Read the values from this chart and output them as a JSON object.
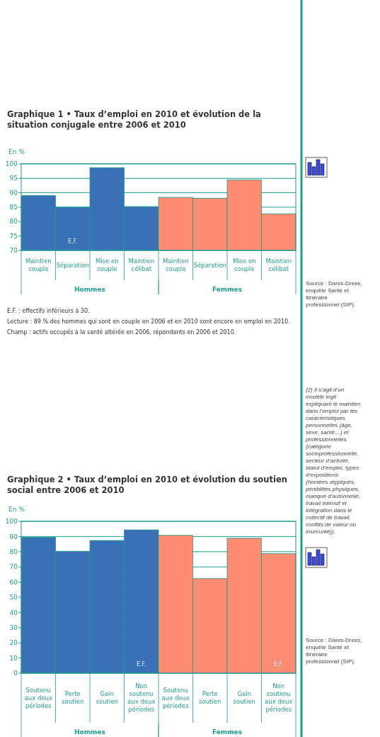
{
  "chart_data": [
    {
      "type": "bar",
      "title": "Graphique 1 • Taux d’emploi en 2010 et évolution de la situation conjugale entre 2006 et 2010",
      "ylabel": "En %",
      "categories": [
        "Maintien couple",
        "Séparation",
        "Mise en couple",
        "Maintien célibat",
        "Maintien couple",
        "Séparation",
        "Mise en couple",
        "Maintien célibat"
      ],
      "series": [
        {
          "name": "Hommes",
          "color": "#3a70b5",
          "values": [
            89.0,
            85.0,
            98.7,
            85.2,
            null,
            null,
            null,
            null
          ],
          "value_labels": [
            null,
            "E.F.",
            null,
            null,
            null,
            null,
            null,
            null
          ]
        },
        {
          "name": "Femmes",
          "color": "#fd8c72",
          "values": [
            null,
            null,
            null,
            null,
            88.4,
            88.1,
            94.5,
            82.7
          ]
        }
      ],
      "ylim": [
        70,
        100
      ],
      "yticks": [
        70,
        75,
        80,
        85,
        90,
        95,
        100
      ],
      "grid": "y",
      "legend": false,
      "annotations": [
        "E.F. : effectifs inférieurs à 30.",
        "Lecture : 89 % des hommes qui sont en couple en 2006 et en 2010 sont encore en emploi en 2010.",
        "Champ : actifs occupés à la santé altérée en 2006, répondants en 2006 et 2010.",
        "Source : Dares-Drees, enquête Santé et itinéraire professionnel (SIP).",
        "(2) Il s’agit d’un modèle logit expliquant le maintien dans l’emploi par les caractéristiques personnelles (âge, sexe, santé…) et professionnelles (catégorie socioprofessionnelle, secteur d’activité, statut d’emploi, types d’expositions (horaires atypiques, pénibilités physiques, manque d’autonomie, travail intensif et intégration dans le collectif de travail, conflits de valeur ou insécurité))."
      ]
    },
    {
      "type": "bar",
      "title": "Graphique 2 • Taux d’emploi en 2010 et évolution du soutien social entre 2006 et 2010",
      "ylabel": "En %",
      "categories": [
        "Soutenu aux deux périodes",
        "Perte soutien",
        "Gain soutien",
        "Non soutenu aux deux périodes",
        "Soutenu aux deux périodes",
        "Perte soutien",
        "Gain soutien",
        "Non soutenu aux deux périodes"
      ],
      "series": [
        {
          "name": "Hommes",
          "color": "#3a70b5",
          "values": [
            89.5,
            80.3,
            87.4,
            94.4,
            null,
            null,
            null,
            null
          ],
          "value_labels": [
            null,
            null,
            null,
            "E.F.",
            null,
            null,
            null,
            null
          ]
        },
        {
          "name": "Femmes",
          "color": "#fd8c72",
          "values": [
            null,
            null,
            null,
            null,
            90.8,
            62.3,
            88.9,
            78.8
          ],
          "value_labels": [
            null,
            null,
            null,
            null,
            null,
            null,
            null,
            "E.F."
          ]
        }
      ],
      "ylim": [
        0,
        100
      ],
      "yticks": [
        0,
        10,
        20,
        30,
        40,
        50,
        60,
        70,
        80,
        90,
        100
      ],
      "grid": "y",
      "legend": false,
      "annotations": [
        "Source : Dares-Drees, enquête Santé et itinéraire professionnel (SIP)."
      ]
    }
  ]
}
